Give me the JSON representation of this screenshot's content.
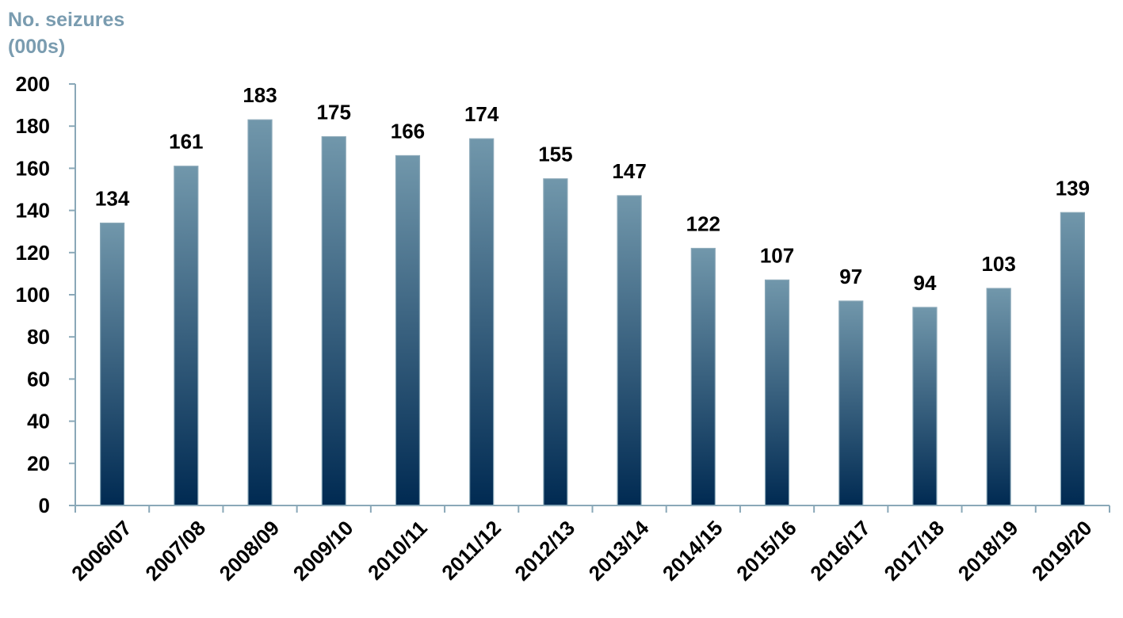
{
  "chart_data": {
    "type": "bar",
    "ylabel_line1": "No. seizures",
    "ylabel_line2": "(000s)",
    "categories": [
      "2006/07",
      "2007/08",
      "2008/09",
      "2009/10",
      "2010/11",
      "2011/12",
      "2012/13",
      "2013/14",
      "2014/15",
      "2015/16",
      "2016/17",
      "2017/18",
      "2018/19",
      "2019/20"
    ],
    "values": [
      134,
      161,
      183,
      175,
      166,
      174,
      155,
      147,
      122,
      107,
      97,
      94,
      103,
      139
    ],
    "ylim": [
      0,
      200
    ],
    "yticks": [
      0,
      20,
      40,
      60,
      80,
      100,
      120,
      140,
      160,
      180,
      200
    ],
    "grid": false,
    "data_labels": true,
    "colors": {
      "bar_top": "#7197ab",
      "bar_bottom": "#002a52",
      "axis": "#8aa8b8",
      "axis_label": "#7a9cb0",
      "text": "#000000"
    }
  }
}
